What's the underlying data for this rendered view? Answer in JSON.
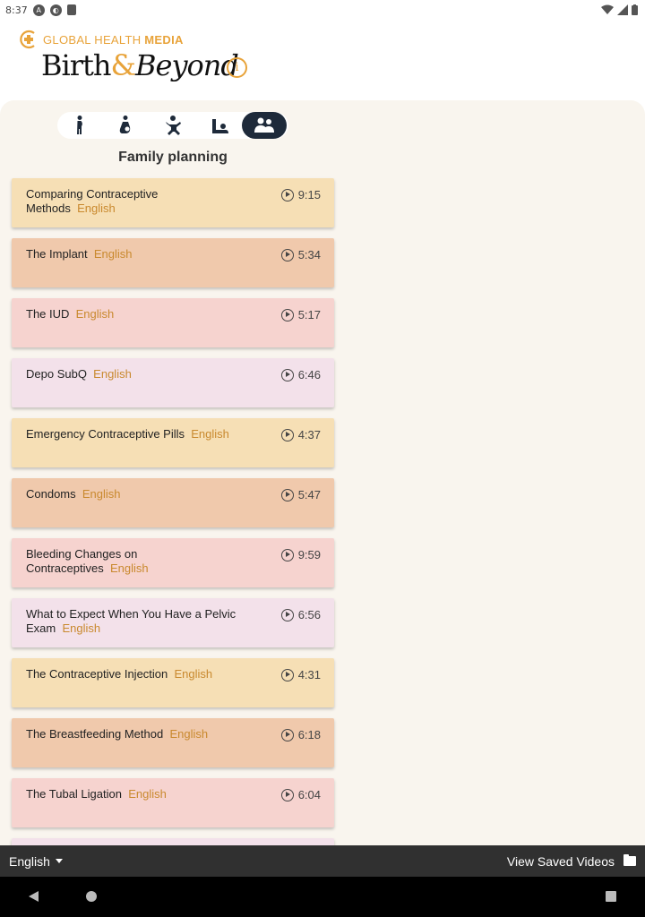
{
  "status_bar": {
    "time": "8:37"
  },
  "brand": {
    "prefix": "GLOBAL HEALTH ",
    "bold": "MEDIA"
  },
  "app_title": {
    "part1": "Birth",
    "amp": "&",
    "part2": "Beyond"
  },
  "tabs": [
    {
      "icon": "pregnant-woman-icon",
      "active": false
    },
    {
      "icon": "mother-baby-icon",
      "active": false
    },
    {
      "icon": "baby-icon",
      "active": false
    },
    {
      "icon": "mother-newborn-icon",
      "active": false
    },
    {
      "icon": "family-icon",
      "active": true
    }
  ],
  "section_title": "Family planning",
  "videos": [
    {
      "title": "Comparing Contraceptive Methods",
      "language": "English",
      "duration": "9:15",
      "color": "#f6dfb5"
    },
    {
      "title": "The Implant",
      "language": "English",
      "duration": "5:34",
      "color": "#f0c9ac"
    },
    {
      "title": "The IUD",
      "language": "English",
      "duration": "5:17",
      "color": "#f6d3cf"
    },
    {
      "title": "Depo SubQ",
      "language": "English",
      "duration": "6:46",
      "color": "#f3e1ea"
    },
    {
      "title": "Emergency Contraceptive Pills",
      "language": "English",
      "duration": "4:37",
      "color": "#f6dfb5"
    },
    {
      "title": "Condoms",
      "language": "English",
      "duration": "5:47",
      "color": "#f0c9ac"
    },
    {
      "title": "Bleeding Changes on Contraceptives",
      "language": "English",
      "duration": "9:59",
      "color": "#f6d3cf"
    },
    {
      "title": "What to Expect When You Have a Pelvic Exam",
      "language": "English",
      "duration": "6:56",
      "color": "#f3e1ea"
    },
    {
      "title": "The Contraceptive Injection",
      "language": "English",
      "duration": "4:31",
      "color": "#f6dfb5"
    },
    {
      "title": "The Breastfeeding Method",
      "language": "English",
      "duration": "6:18",
      "color": "#f0c9ac"
    },
    {
      "title": "The Tubal Ligation",
      "language": "English",
      "duration": "6:04",
      "color": "#f6d3cf"
    },
    {
      "title": "",
      "language": "",
      "duration": "",
      "color": "#f3e1ea"
    }
  ],
  "bottom_bar": {
    "language": "English",
    "saved_label": "View Saved Videos"
  },
  "colors": {
    "accent": "#e8a33a",
    "dark_bar": "#303030",
    "active_tab": "#1e2a3a"
  }
}
